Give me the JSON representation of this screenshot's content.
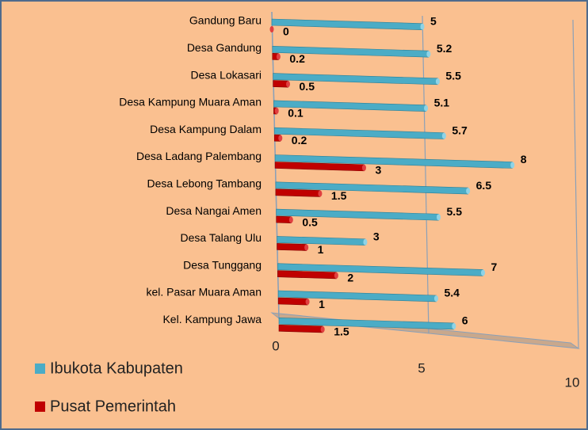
{
  "chart_data": {
    "type": "bar",
    "orientation": "horizontal",
    "categories": [
      "Gandung Baru",
      "Desa Gandung",
      "Desa Lokasari",
      "Desa Kampung Muara Aman",
      "Desa Kampung Dalam",
      "Desa Ladang Palembang",
      "Desa Lebong Tambang",
      "Desa Nangai Amen",
      "Desa Talang Ulu",
      "Desa Tunggang",
      "kel. Pasar Muara Aman",
      "Kel. Kampung Jawa"
    ],
    "series": [
      {
        "name": "Ibukota Kabupaten",
        "color": "#4bacc6",
        "values": [
          5,
          5.2,
          5.5,
          5.1,
          5.7,
          8,
          6.5,
          5.5,
          3,
          7,
          5.4,
          6
        ]
      },
      {
        "name": "Pusat Pemerintah",
        "color": "#c00000",
        "values": [
          0,
          0.2,
          0.5,
          0.1,
          0.2,
          3,
          1.5,
          0.5,
          1,
          2,
          1,
          1.5
        ]
      }
    ],
    "xlim": [
      0,
      10
    ],
    "xticks": [
      0,
      5,
      10
    ],
    "grid": true,
    "legend": "bottom-left"
  }
}
